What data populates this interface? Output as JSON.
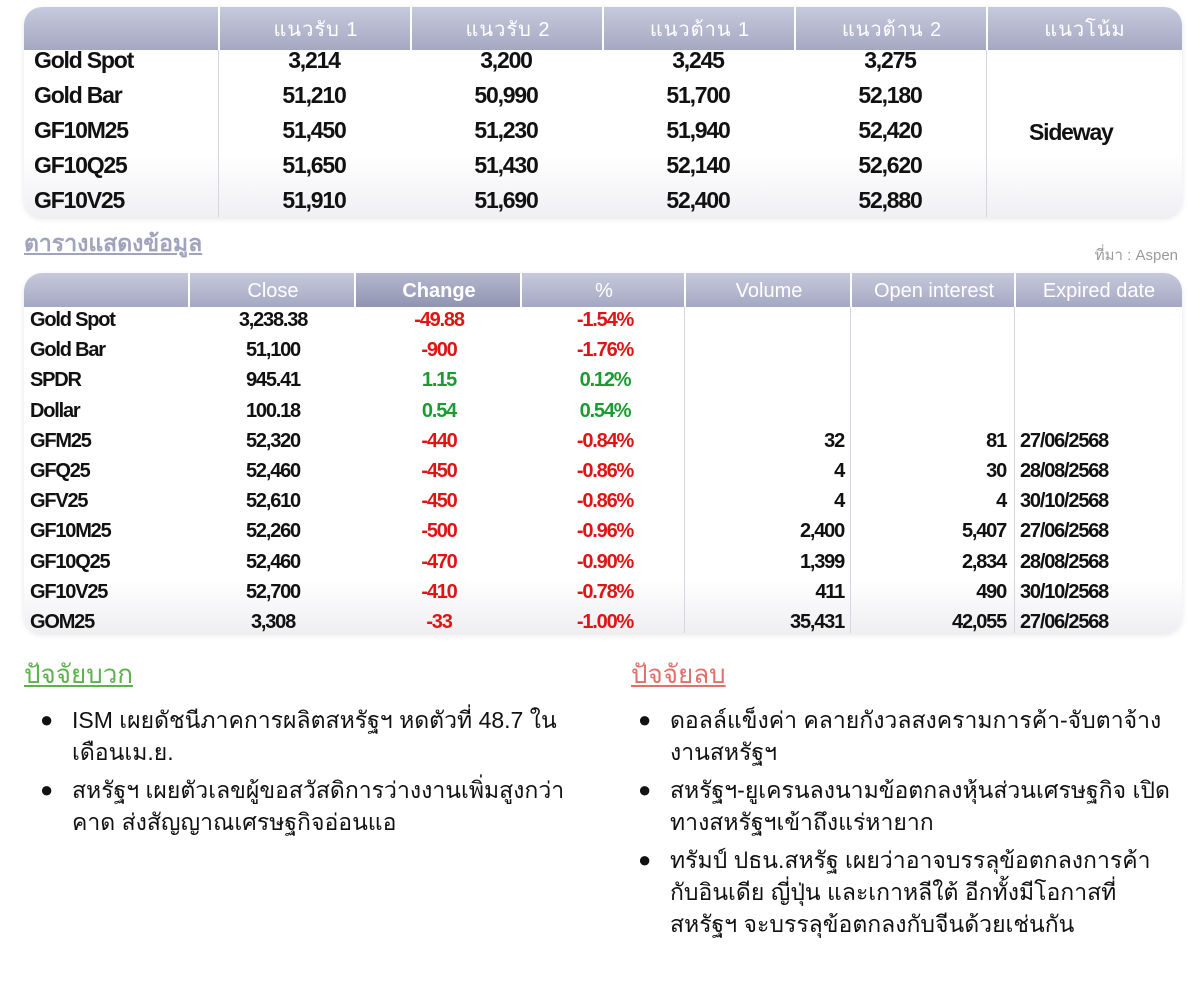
{
  "table1": {
    "headers": [
      "แนวรับ 1",
      "แนวรับ 2",
      "แนวต้าน 1",
      "แนวต้าน 2",
      "แนวโน้ม"
    ],
    "rows": [
      {
        "name": "Gold Spot",
        "s1": "3,214",
        "s2": "3,200",
        "r1": "3,245",
        "r2": "3,275"
      },
      {
        "name": "Gold Bar",
        "s1": "51,210",
        "s2": "50,990",
        "r1": "51,700",
        "r2": "52,180"
      },
      {
        "name": "GF10M25",
        "s1": "51,450",
        "s2": "51,230",
        "r1": "51,940",
        "r2": "52,420"
      },
      {
        "name": "GF10Q25",
        "s1": "51,650",
        "s2": "51,430",
        "r1": "52,140",
        "r2": "52,620"
      },
      {
        "name": "GF10V25",
        "s1": "51,910",
        "s2": "51,690",
        "r1": "52,400",
        "r2": "52,880"
      }
    ],
    "trend": "Sideway"
  },
  "section_title": "ตารางแสดงข้อมูล",
  "source": "ที่มา : Aspen",
  "table2": {
    "headers": [
      "Close",
      "Change",
      "%",
      "Volume",
      "Open interest",
      "Expired date"
    ],
    "rows": [
      {
        "name": "Gold Spot",
        "close": "3,238.38",
        "change": "-49.88",
        "pct": "-1.54%",
        "volume": "",
        "oi": "",
        "expired": "",
        "dir": "down"
      },
      {
        "name": "Gold Bar",
        "close": "51,100",
        "change": "-900",
        "pct": "-1.76%",
        "volume": "",
        "oi": "",
        "expired": "",
        "dir": "down"
      },
      {
        "name": "SPDR",
        "close": "945.41",
        "change": "1.15",
        "pct": "0.12%",
        "volume": "",
        "oi": "",
        "expired": "",
        "dir": "up"
      },
      {
        "name": "Dollar",
        "close": "100.18",
        "change": "0.54",
        "pct": "0.54%",
        "volume": "",
        "oi": "",
        "expired": "",
        "dir": "up"
      },
      {
        "name": "GFM25",
        "close": "52,320",
        "change": "-440",
        "pct": "-0.84%",
        "volume": "32",
        "oi": "81",
        "expired": "27/06/2568",
        "dir": "down"
      },
      {
        "name": "GFQ25",
        "close": "52,460",
        "change": "-450",
        "pct": "-0.86%",
        "volume": "4",
        "oi": "30",
        "expired": "28/08/2568",
        "dir": "down"
      },
      {
        "name": "GFV25",
        "close": "52,610",
        "change": "-450",
        "pct": "-0.86%",
        "volume": "4",
        "oi": "4",
        "expired": "30/10/2568",
        "dir": "down"
      },
      {
        "name": "GF10M25",
        "close": "52,260",
        "change": "-500",
        "pct": "-0.96%",
        "volume": "2,400",
        "oi": "5,407",
        "expired": "27/06/2568",
        "dir": "down"
      },
      {
        "name": "GF10Q25",
        "close": "52,460",
        "change": "-470",
        "pct": "-0.90%",
        "volume": "1,399",
        "oi": "2,834",
        "expired": "28/08/2568",
        "dir": "down"
      },
      {
        "name": "GF10V25",
        "close": "52,700",
        "change": "-410",
        "pct": "-0.78%",
        "volume": "411",
        "oi": "490",
        "expired": "30/10/2568",
        "dir": "down"
      },
      {
        "name": "GOM25",
        "close": "3,308",
        "change": "-33",
        "pct": "-1.00%",
        "volume": "35,431",
        "oi": "42,055",
        "expired": "27/06/2568",
        "dir": "down"
      }
    ]
  },
  "colors": {
    "header": "#a5a8c2",
    "negative": "#e01414",
    "positive": "#1e9a32",
    "positive_title": "#5fb04e",
    "negative_title": "#e0706a"
  },
  "positive_factors": {
    "title": "ปัจจัยบวก",
    "items": [
      "ISM เผยดัชนีภาคการผลิตสหรัฐฯ หดตัวที่ 48.7 ในเดือนเม.ย.",
      "สหรัฐฯ เผยตัวเลขผู้ขอสวัสดิการว่างงานเพิ่มสูงกว่าคาด ส่งสัญญาณเศรษฐกิจอ่อนแอ"
    ]
  },
  "negative_factors": {
    "title": "ปัจจัยลบ",
    "items": [
      "ดอลล์แข็งค่า คลายกังวลสงครามการค้า-จับตาจ้างงานสหรัฐฯ",
      "สหรัฐฯ-ยูเครนลงนามข้อตกลงหุ้นส่วนเศรษฐกิจ เปิดทางสหรัฐฯเข้าถึงแร่หายาก",
      "ทรัมป์ ปธน.สหรัฐ เผยว่าอาจบรรลุข้อตกลงการค้ากับอินเดีย ญี่ปุ่น และเกาหลีใต้ อีกทั้งมีโอกาสที่สหรัฐฯ จะบรรลุข้อตกลงกับจีนด้วยเช่นกัน"
    ]
  }
}
